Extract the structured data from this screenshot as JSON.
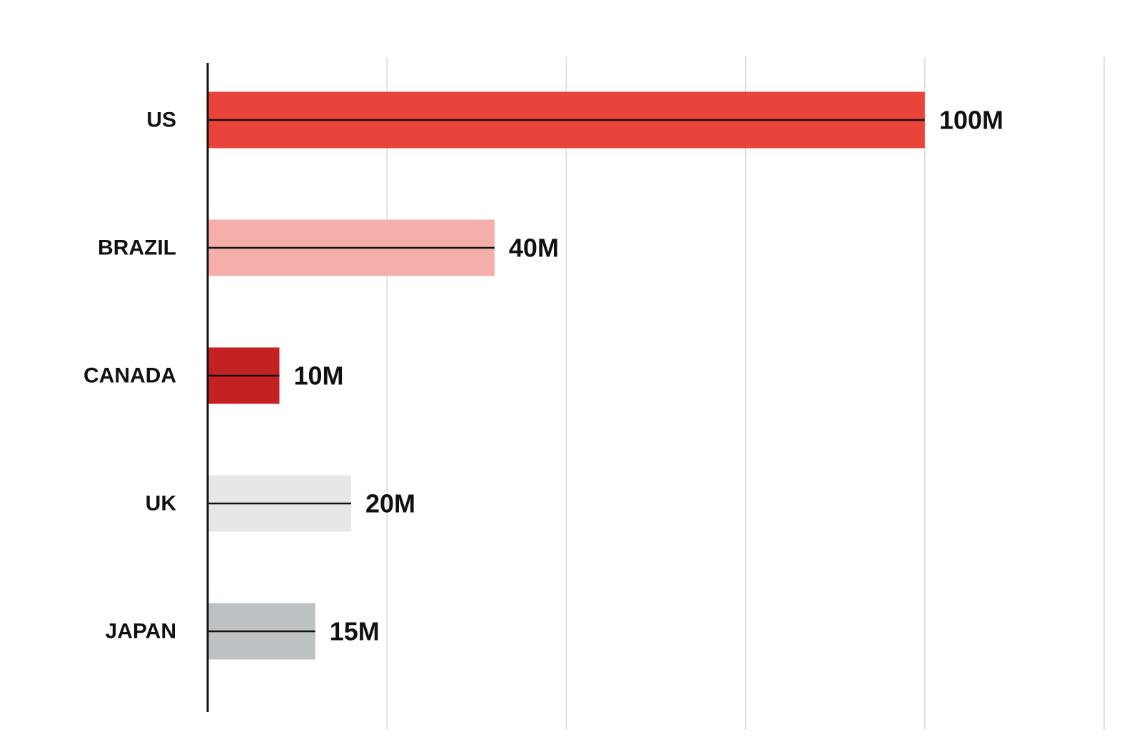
{
  "chart_data": {
    "type": "bar",
    "orientation": "horizontal",
    "title": "",
    "xlabel": "",
    "ylabel": "",
    "categories": [
      "US",
      "BRAZIL",
      "CANADA",
      "UK",
      "JAPAN"
    ],
    "values": [
      100,
      40,
      10,
      20,
      15
    ],
    "value_labels": [
      "100M",
      "40M",
      "10M",
      "20M",
      "15M"
    ],
    "unit": "M",
    "xlim": [
      0,
      125
    ],
    "grid": true,
    "grid_interval": 25,
    "legend": "none",
    "colors": [
      "#e8443a",
      "#f5aeaa",
      "#c42123",
      "#e6e7e7",
      "#bec1c4"
    ]
  }
}
